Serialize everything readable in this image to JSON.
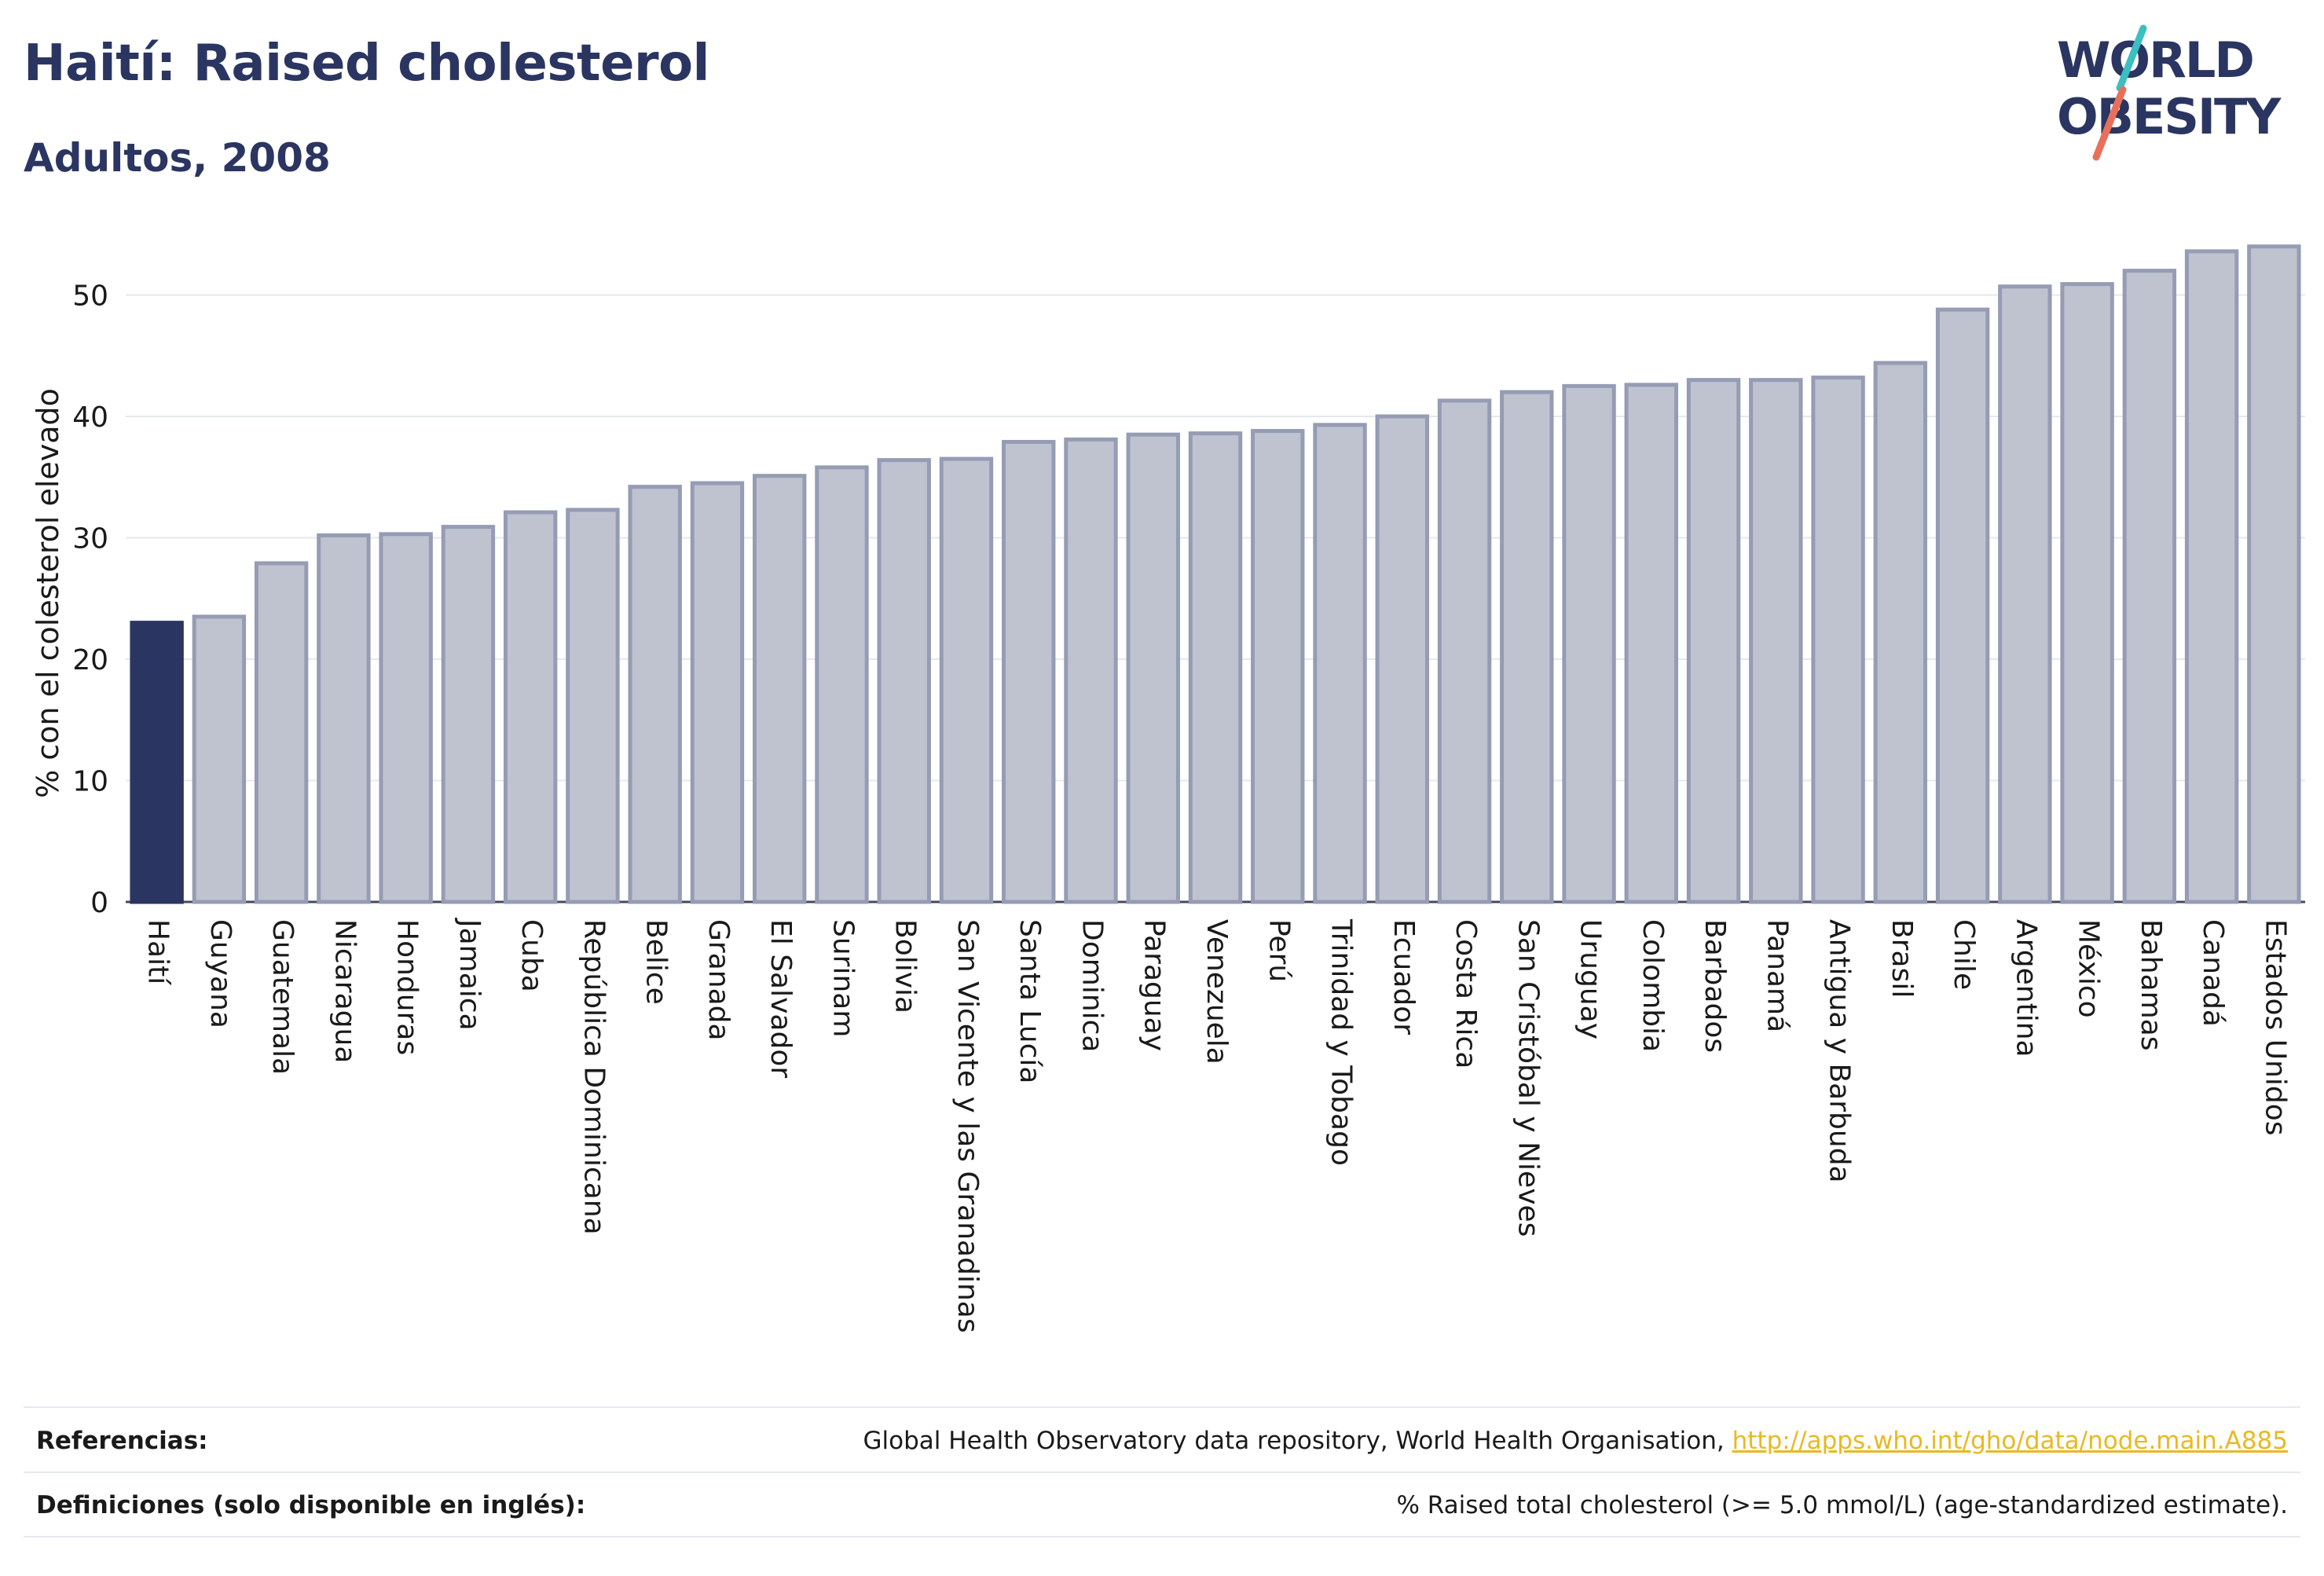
{
  "header": {
    "title": "Haití: Raised cholesterol",
    "subtitle": "Adultos, 2008"
  },
  "logo": {
    "line1": "WORLD",
    "line2": "OBESITY",
    "accent_teal": "#3bbfc0",
    "accent_coral": "#e8705a"
  },
  "colors": {
    "highlight": "#2b3561",
    "bar_fill": "#bfc3d0",
    "bar_stroke": "#959cb4",
    "grid": "#e6e8ee",
    "text": "#1a1a1a"
  },
  "chart_data": {
    "type": "bar",
    "title": "Haití: Raised cholesterol",
    "subtitle": "Adultos, 2008",
    "ylabel": "% con el colesterol elevado",
    "xlabel": "",
    "ylim": [
      0,
      55
    ],
    "yticks": [
      0,
      10,
      20,
      30,
      40,
      50
    ],
    "grid": true,
    "highlight_category": "Haití",
    "categories": [
      "Haití",
      "Guyana",
      "Guatemala",
      "Nicaragua",
      "Honduras",
      "Jamaica",
      "Cuba",
      "República Dominicana",
      "Belice",
      "Granada",
      "El Salvador",
      "Surinam",
      "Bolivia",
      "San Vicente y las Granadinas",
      "Santa Lucía",
      "Dominica",
      "Paraguay",
      "Venezuela",
      "Perú",
      "Trinidad y Tobago",
      "Ecuador",
      "Costa Rica",
      "San Cristóbal y Nieves",
      "Uruguay",
      "Colombia",
      "Barbados",
      "Panamá",
      "Antigua y Barbuda",
      "Brasil",
      "Chile",
      "Argentina",
      "México",
      "Bahamas",
      "Canadá",
      "Estados Unidos"
    ],
    "values": [
      23.0,
      23.5,
      27.9,
      30.2,
      30.3,
      30.9,
      32.1,
      32.3,
      34.2,
      34.5,
      35.1,
      35.8,
      36.4,
      36.5,
      37.9,
      38.1,
      38.5,
      38.6,
      38.8,
      39.3,
      40.0,
      41.3,
      42.0,
      42.5,
      42.6,
      43.0,
      43.0,
      43.2,
      44.4,
      48.8,
      50.7,
      50.9,
      52.0,
      53.6,
      54.0
    ]
  },
  "footer": {
    "references_label": "Referencias:",
    "references_text": "Global Health Observatory data repository, World Health Organisation, ",
    "references_link": "http://apps.who.int/gho/data/node.main.A885",
    "definitions_label": "Definiciones (solo disponible en inglés):",
    "definitions_text": "% Raised total cholesterol (>= 5.0 mmol/L) (age-standardized estimate)."
  }
}
